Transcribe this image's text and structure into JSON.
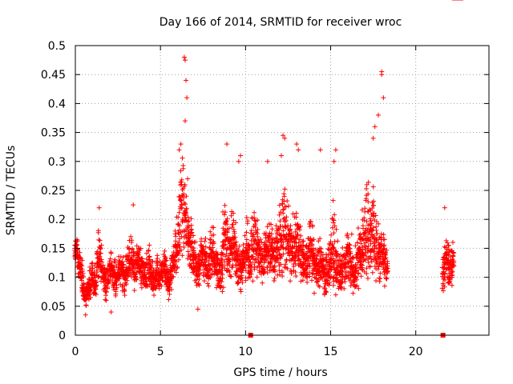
{
  "chart_data": {
    "type": "scatter",
    "title": "Day 166 of 2014, SRMTID for receiver wroc",
    "xlabel": "GPS time / hours",
    "ylabel": "SRMTID / TECUs",
    "xlim": [
      0,
      24.3
    ],
    "ylim": [
      0,
      0.5
    ],
    "xticks": [
      0,
      5,
      10,
      15,
      20
    ],
    "xtick_labels": [
      "0",
      "5",
      "10",
      "15",
      "20"
    ],
    "yticks": [
      0,
      0.05,
      0.1,
      0.15,
      0.2,
      0.25,
      0.3,
      0.35,
      0.4,
      0.45,
      0.5
    ],
    "ytick_labels": [
      "0",
      "0.05",
      "0.1",
      "0.15",
      "0.2",
      "0.25",
      "0.3",
      "0.35",
      "0.4",
      "0.45",
      "0.5"
    ],
    "grid": true,
    "marker": "plus",
    "color": "#ff0000",
    "legend": "none",
    "series": [
      {
        "name": "SRMTID",
        "x": [
          0.0,
          0.1,
          0.2,
          0.3,
          0.4,
          0.5,
          0.6,
          0.7,
          0.8,
          0.9,
          1.0,
          1.1,
          1.2,
          1.3,
          1.4,
          1.5,
          1.6,
          1.7,
          1.8,
          1.9,
          2.0,
          2.1,
          2.2,
          2.3,
          2.4,
          2.5,
          2.6,
          2.7,
          2.8,
          2.9,
          3.0,
          3.1,
          3.2,
          3.3,
          3.4,
          3.5,
          3.6,
          3.7,
          3.8,
          3.9,
          4.0,
          4.1,
          4.2,
          4.3,
          4.4,
          4.5,
          4.6,
          4.7,
          4.8,
          4.9,
          5.0,
          5.1,
          5.2,
          5.3,
          5.4,
          5.5,
          5.6,
          5.7,
          5.8,
          5.9,
          6.0,
          6.1,
          6.2,
          6.3,
          6.4,
          6.5,
          6.6,
          6.7,
          6.8,
          6.9,
          7.0,
          7.1,
          7.2,
          7.3,
          7.4,
          7.5,
          7.6,
          7.7,
          7.8,
          7.9,
          8.0,
          8.1,
          8.2,
          8.3,
          8.4,
          8.5,
          8.6,
          8.7,
          8.8,
          8.9,
          9.0,
          9.1,
          9.2,
          9.3,
          9.4,
          9.5,
          9.6,
          9.7,
          9.8,
          9.9,
          10.0,
          10.1,
          10.2,
          10.3,
          10.4,
          10.5,
          10.6,
          10.7,
          10.8,
          10.9,
          11.0,
          11.1,
          11.2,
          11.3,
          11.4,
          11.5,
          11.6,
          11.7,
          11.8,
          11.9,
          12.0,
          12.1,
          12.2,
          12.3,
          12.4,
          12.5,
          12.6,
          12.7,
          12.8,
          12.9,
          13.0,
          13.1,
          13.2,
          13.3,
          13.4,
          13.5,
          13.6,
          13.7,
          13.8,
          13.9,
          14.0,
          14.1,
          14.2,
          14.3,
          14.4,
          14.5,
          14.6,
          14.7,
          14.8,
          14.9,
          15.0,
          15.1,
          15.2,
          15.3,
          15.4,
          15.5,
          15.6,
          15.7,
          15.8,
          15.9,
          16.0,
          16.1,
          16.2,
          16.3,
          16.4,
          16.5,
          16.6,
          16.7,
          16.8,
          16.9,
          17.0,
          17.1,
          17.2,
          17.3,
          17.4,
          17.5,
          17.6,
          17.7,
          17.8,
          17.9,
          18.0,
          18.1,
          18.2,
          18.3,
          21.6,
          21.7,
          21.8,
          21.9,
          22.0,
          22.1,
          22.2,
          22.3,
          22.4,
          22.5,
          22.6
        ],
        "mid": [
          0.15,
          0.14,
          0.13,
          0.12,
          0.1,
          0.08,
          0.07,
          0.07,
          0.08,
          0.09,
          0.1,
          0.09,
          0.1,
          0.12,
          0.14,
          0.13,
          0.11,
          0.1,
          0.09,
          0.1,
          0.11,
          0.12,
          0.11,
          0.1,
          0.09,
          0.1,
          0.11,
          0.12,
          0.11,
          0.1,
          0.11,
          0.12,
          0.13,
          0.14,
          0.12,
          0.11,
          0.12,
          0.13,
          0.12,
          0.11,
          0.11,
          0.1,
          0.11,
          0.12,
          0.11,
          0.1,
          0.09,
          0.1,
          0.11,
          0.1,
          0.1,
          0.11,
          0.12,
          0.11,
          0.1,
          0.09,
          0.1,
          0.12,
          0.13,
          0.15,
          0.16,
          0.18,
          0.21,
          0.25,
          0.22,
          0.19,
          0.17,
          0.16,
          0.15,
          0.14,
          0.13,
          0.12,
          0.11,
          0.12,
          0.13,
          0.14,
          0.13,
          0.12,
          0.11,
          0.13,
          0.15,
          0.14,
          0.13,
          0.12,
          0.11,
          0.1,
          0.12,
          0.15,
          0.17,
          0.16,
          0.15,
          0.14,
          0.15,
          0.16,
          0.15,
          0.13,
          0.12,
          0.11,
          0.12,
          0.13,
          0.14,
          0.15,
          0.14,
          0.13,
          0.15,
          0.17,
          0.16,
          0.15,
          0.14,
          0.13,
          0.12,
          0.13,
          0.14,
          0.15,
          0.16,
          0.15,
          0.14,
          0.13,
          0.14,
          0.16,
          0.18,
          0.17,
          0.19,
          0.2,
          0.18,
          0.16,
          0.15,
          0.14,
          0.15,
          0.16,
          0.17,
          0.16,
          0.15,
          0.14,
          0.13,
          0.12,
          0.13,
          0.14,
          0.15,
          0.14,
          0.13,
          0.12,
          0.11,
          0.12,
          0.13,
          0.12,
          0.11,
          0.1,
          0.11,
          0.12,
          0.14,
          0.16,
          0.15,
          0.13,
          0.12,
          0.11,
          0.1,
          0.11,
          0.12,
          0.13,
          0.14,
          0.13,
          0.12,
          0.11,
          0.1,
          0.12,
          0.14,
          0.13,
          0.14,
          0.15,
          0.16,
          0.18,
          0.17,
          0.16,
          0.17,
          0.18,
          0.17,
          0.15,
          0.14,
          0.13,
          0.15,
          0.14,
          0.13,
          0.12,
          0.11,
          0.12,
          0.13,
          0.12,
          0.11,
          0.12,
          0.13
        ],
        "spread": [
          0.03,
          0.04,
          0.04,
          0.04,
          0.04,
          0.03,
          0.03,
          0.03,
          0.04,
          0.04,
          0.04,
          0.04,
          0.04,
          0.05,
          0.06,
          0.05,
          0.04,
          0.04,
          0.04,
          0.04,
          0.04,
          0.04,
          0.04,
          0.04,
          0.04,
          0.04,
          0.04,
          0.05,
          0.04,
          0.04,
          0.04,
          0.05,
          0.05,
          0.06,
          0.05,
          0.04,
          0.05,
          0.05,
          0.04,
          0.04,
          0.04,
          0.04,
          0.04,
          0.05,
          0.04,
          0.04,
          0.04,
          0.04,
          0.04,
          0.04,
          0.04,
          0.04,
          0.04,
          0.04,
          0.04,
          0.04,
          0.04,
          0.05,
          0.05,
          0.06,
          0.07,
          0.09,
          0.12,
          0.15,
          0.13,
          0.09,
          0.07,
          0.06,
          0.06,
          0.05,
          0.05,
          0.05,
          0.04,
          0.05,
          0.05,
          0.05,
          0.05,
          0.05,
          0.05,
          0.06,
          0.07,
          0.06,
          0.05,
          0.05,
          0.05,
          0.05,
          0.06,
          0.09,
          0.1,
          0.08,
          0.07,
          0.06,
          0.07,
          0.08,
          0.07,
          0.06,
          0.05,
          0.05,
          0.05,
          0.06,
          0.06,
          0.07,
          0.06,
          0.06,
          0.07,
          0.08,
          0.07,
          0.07,
          0.06,
          0.06,
          0.05,
          0.06,
          0.06,
          0.07,
          0.07,
          0.07,
          0.06,
          0.06,
          0.07,
          0.08,
          0.1,
          0.09,
          0.12,
          0.12,
          0.1,
          0.08,
          0.07,
          0.06,
          0.07,
          0.08,
          0.09,
          0.08,
          0.07,
          0.06,
          0.06,
          0.05,
          0.06,
          0.06,
          0.07,
          0.06,
          0.06,
          0.05,
          0.05,
          0.06,
          0.06,
          0.05,
          0.05,
          0.05,
          0.05,
          0.06,
          0.07,
          0.1,
          0.09,
          0.07,
          0.06,
          0.05,
          0.05,
          0.05,
          0.06,
          0.06,
          0.07,
          0.06,
          0.06,
          0.05,
          0.05,
          0.06,
          0.07,
          0.07,
          0.08,
          0.09,
          0.1,
          0.12,
          0.13,
          0.11,
          0.1,
          0.11,
          0.1,
          0.08,
          0.07,
          0.06,
          0.06,
          0.05,
          0.05,
          0.05,
          0.05,
          0.05,
          0.05,
          0.05,
          0.05,
          0.05,
          0.05
        ],
        "peaks": [
          {
            "x": 6.4,
            "y": 0.48
          },
          {
            "x": 6.45,
            "y": 0.475
          },
          {
            "x": 6.5,
            "y": 0.44
          },
          {
            "x": 6.55,
            "y": 0.41
          },
          {
            "x": 6.45,
            "y": 0.37
          },
          {
            "x": 6.2,
            "y": 0.33
          },
          {
            "x": 6.1,
            "y": 0.32
          },
          {
            "x": 18.0,
            "y": 0.455
          },
          {
            "x": 18.0,
            "y": 0.45
          },
          {
            "x": 18.1,
            "y": 0.41
          },
          {
            "x": 17.8,
            "y": 0.38
          },
          {
            "x": 17.6,
            "y": 0.36
          },
          {
            "x": 17.5,
            "y": 0.34
          },
          {
            "x": 12.2,
            "y": 0.345
          },
          {
            "x": 12.3,
            "y": 0.34
          },
          {
            "x": 12.1,
            "y": 0.31
          },
          {
            "x": 8.9,
            "y": 0.33
          },
          {
            "x": 13.0,
            "y": 0.33
          },
          {
            "x": 13.1,
            "y": 0.32
          },
          {
            "x": 15.3,
            "y": 0.32
          },
          {
            "x": 15.2,
            "y": 0.3
          },
          {
            "x": 14.4,
            "y": 0.32
          },
          {
            "x": 11.3,
            "y": 0.3
          },
          {
            "x": 9.7,
            "y": 0.31
          },
          {
            "x": 9.6,
            "y": 0.3
          },
          {
            "x": 6.6,
            "y": 0.27
          },
          {
            "x": 3.4,
            "y": 0.225
          },
          {
            "x": 1.4,
            "y": 0.22
          },
          {
            "x": 21.7,
            "y": 0.22
          },
          {
            "x": 0.6,
            "y": 0.035
          },
          {
            "x": 2.1,
            "y": 0.04
          },
          {
            "x": 7.2,
            "y": 0.045
          }
        ],
        "zero_markers": [
          {
            "x": 10.3,
            "y": 0
          },
          {
            "x": 21.6,
            "y": 0
          }
        ]
      }
    ]
  }
}
